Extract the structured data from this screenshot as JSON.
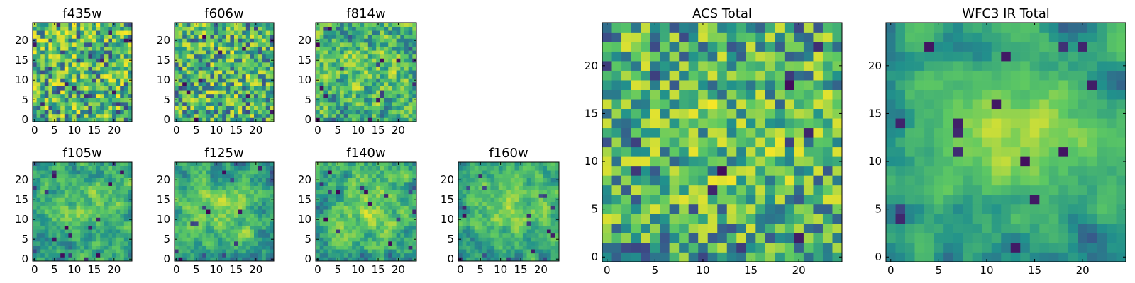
{
  "figure": {
    "type": "heatmap-grid",
    "colormap": "viridis"
  },
  "colormap_stops": [
    "#440154",
    "#3b528b",
    "#21918c",
    "#5ec962",
    "#fde725"
  ],
  "chart_data": [
    {
      "type": "heatmap",
      "title": "f435w",
      "grid": 25,
      "seed": 11,
      "smooth": 0.0,
      "center": 0.0,
      "xticks": [
        "0",
        "5",
        "10",
        "15",
        "20"
      ],
      "yticks": [
        "0",
        "5",
        "10",
        "15",
        "20"
      ],
      "xlim": [
        0,
        24
      ],
      "ylim": [
        0,
        24
      ]
    },
    {
      "type": "heatmap",
      "title": "f606w",
      "grid": 25,
      "seed": 23,
      "smooth": 0.0,
      "center": 0.05,
      "xticks": [
        "0",
        "5",
        "10",
        "15",
        "20"
      ],
      "yticks": [
        "0",
        "5",
        "10",
        "15",
        "20"
      ],
      "xlim": [
        0,
        24
      ],
      "ylim": [
        0,
        24
      ]
    },
    {
      "type": "heatmap",
      "title": "f814w",
      "grid": 25,
      "seed": 37,
      "smooth": 0.2,
      "center": 0.15,
      "xticks": [
        "0",
        "5",
        "10",
        "15",
        "20"
      ],
      "yticks": [
        "0",
        "5",
        "10",
        "15",
        "20"
      ],
      "xlim": [
        0,
        24
      ],
      "ylim": [
        0,
        24
      ]
    },
    {
      "type": "heatmap",
      "title": "f105w",
      "grid": 25,
      "seed": 41,
      "smooth": 0.55,
      "center": 0.3,
      "xticks": [
        "0",
        "5",
        "10",
        "15",
        "20"
      ],
      "yticks": [
        "0",
        "5",
        "10",
        "15",
        "20"
      ],
      "xlim": [
        0,
        24
      ],
      "ylim": [
        0,
        24
      ]
    },
    {
      "type": "heatmap",
      "title": "f125w",
      "grid": 25,
      "seed": 53,
      "smooth": 0.55,
      "center": 0.3,
      "xticks": [
        "0",
        "5",
        "10",
        "15",
        "20"
      ],
      "yticks": [
        "0",
        "5",
        "10",
        "15",
        "20"
      ],
      "xlim": [
        0,
        24
      ],
      "ylim": [
        0,
        24
      ]
    },
    {
      "type": "heatmap",
      "title": "f140w",
      "grid": 25,
      "seed": 67,
      "smooth": 0.55,
      "center": 0.3,
      "xticks": [
        "0",
        "5",
        "10",
        "15",
        "20"
      ],
      "yticks": [
        "0",
        "5",
        "10",
        "15",
        "20"
      ],
      "xlim": [
        0,
        24
      ],
      "ylim": [
        0,
        24
      ]
    },
    {
      "type": "heatmap",
      "title": "f160w",
      "grid": 25,
      "seed": 79,
      "smooth": 0.6,
      "center": 0.35,
      "xticks": [
        "0",
        "5",
        "10",
        "15",
        "20"
      ],
      "yticks": [
        "0",
        "5",
        "10",
        "15",
        "20"
      ],
      "xlim": [
        0,
        24
      ],
      "ylim": [
        0,
        24
      ]
    },
    {
      "type": "heatmap",
      "title": "ACS Total",
      "grid": 25,
      "seed": 97,
      "smooth": 0.1,
      "center": 0.1,
      "xticks": [
        "0",
        "5",
        "10",
        "15",
        "20"
      ],
      "yticks": [
        "0",
        "5",
        "10",
        "15",
        "20"
      ],
      "xlim": [
        0,
        24
      ],
      "ylim": [
        0,
        24
      ]
    },
    {
      "type": "heatmap",
      "title": "WFC3 IR Total",
      "grid": 25,
      "seed": 113,
      "smooth": 0.7,
      "center": 0.45,
      "xticks": [
        "0",
        "5",
        "10",
        "15",
        "20"
      ],
      "yticks": [
        "0",
        "5",
        "10",
        "15",
        "20"
      ],
      "xlim": [
        0,
        24
      ],
      "ylim": [
        0,
        24
      ]
    }
  ]
}
